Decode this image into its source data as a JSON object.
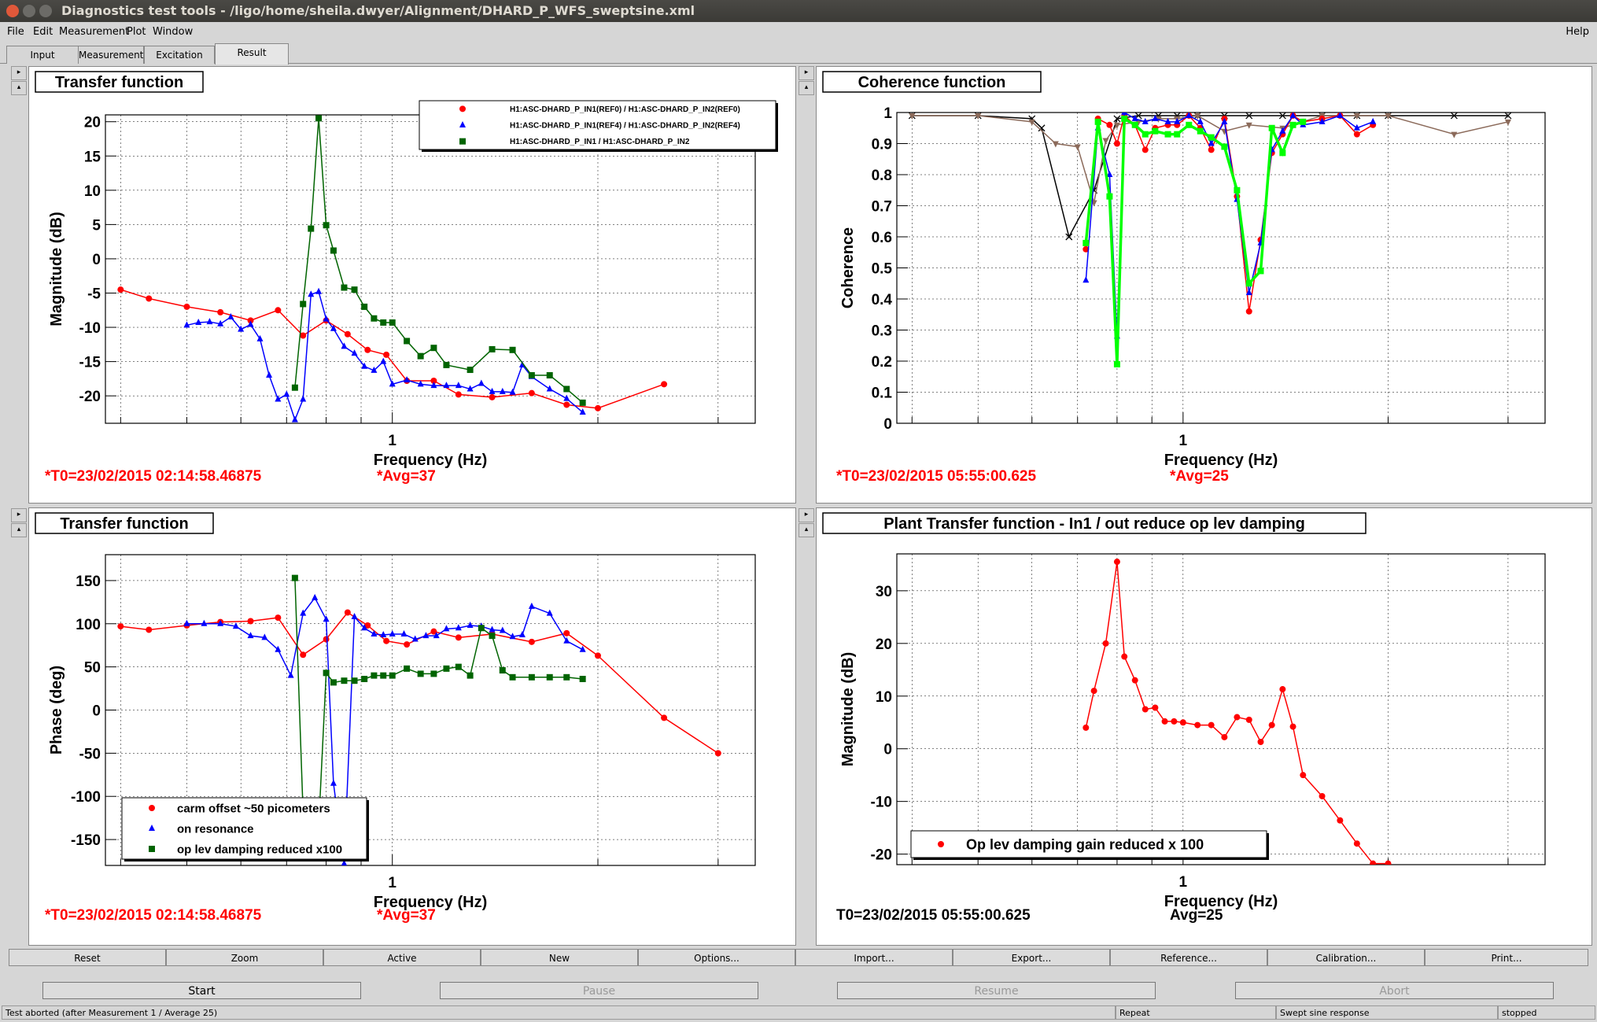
{
  "window": {
    "title": "Diagnostics test tools - /ligo/home/sheila.dwyer/Alignment/DHARD_P_WFS_sweptsine.xml"
  },
  "menu": {
    "items": [
      "File",
      "Edit",
      "Measurement",
      "Plot",
      "Window"
    ],
    "help": "Help"
  },
  "tabs": [
    "Input",
    "Measurement",
    "Excitation",
    "Result"
  ],
  "active_tab": "Result",
  "panels": {
    "tl": {
      "title": "Transfer function",
      "t0": "*T0=23/02/2015 02:14:58.46875",
      "avg": "*Avg=37"
    },
    "tr": {
      "title": "Coherence function",
      "t0": "*T0=23/02/2015 05:55:00.625",
      "avg": "*Avg=25"
    },
    "bl": {
      "title": "Transfer function",
      "t0": "*T0=23/02/2015 02:14:58.46875",
      "avg": "*Avg=37"
    },
    "br": {
      "title": "Plant Transfer function - In1 / out reduce op lev damping",
      "t0": "T0=23/02/2015 05:55:00.625",
      "avg": "Avg=25"
    }
  },
  "colors": {
    "red": "#ff0000",
    "blue": "#0000ff",
    "green": "#006400",
    "lime": "#00ff00",
    "brown": "#8b6a5a",
    "black": "#000000"
  },
  "toolbar": [
    "Reset",
    "Zoom",
    "Active",
    "New",
    "Options...",
    "Import...",
    "Export...",
    "Reference...",
    "Calibration...",
    "Print..."
  ],
  "controls": {
    "start": "Start",
    "pause": "Pause",
    "resume": "Resume",
    "abort": "Abort"
  },
  "status": {
    "message": "Test aborted (after Measurement 1 / Average 25)",
    "mode": "Repeat",
    "type": "Swept sine response",
    "state": "stopped"
  },
  "chart_data": [
    {
      "id": "tl",
      "type": "line",
      "title": "Transfer function",
      "xlabel": "Frequency (Hz)",
      "ylabel": "Magnitude (dB)",
      "xscale": "log",
      "xlim": [
        0.38,
        3.4
      ],
      "ylim": [
        -24,
        21
      ],
      "yticks": [
        20,
        15,
        10,
        5,
        0,
        -5,
        -10,
        -15,
        -20
      ],
      "xtick_labels": [
        {
          "v": 1,
          "t": "1"
        }
      ],
      "legend_placement": "top-right",
      "grid": true,
      "series": [
        {
          "name": "H1:ASC-DHARD_P_IN1(REF0) / H1:ASC-DHARD_P_IN2(REF0)",
          "color": "#ff0000",
          "marker": "circle",
          "x": [
            0.4,
            0.44,
            0.5,
            0.56,
            0.62,
            0.68,
            0.74,
            0.8,
            0.86,
            0.92,
            0.98,
            1.05,
            1.15,
            1.25,
            1.4,
            1.6,
            1.8,
            2.0,
            2.5
          ],
          "y": [
            -4.5,
            -5.8,
            -7,
            -7.8,
            -9,
            -7.5,
            -11.2,
            -9,
            -11,
            -13.3,
            -14,
            -17.8,
            -17.8,
            -19.8,
            -20.2,
            -19.6,
            -21.3,
            -21.8,
            -18.3
          ]
        },
        {
          "name": "H1:ASC-DHARD_P_IN1(REF4) / H1:ASC-DHARD_P_IN2(REF4)",
          "color": "#0000ff",
          "marker": "triangle",
          "x": [
            0.5,
            0.52,
            0.54,
            0.56,
            0.58,
            0.6,
            0.62,
            0.64,
            0.66,
            0.68,
            0.7,
            0.72,
            0.74,
            0.76,
            0.78,
            0.8,
            0.82,
            0.85,
            0.88,
            0.91,
            0.94,
            0.97,
            1.0,
            1.05,
            1.1,
            1.15,
            1.2,
            1.25,
            1.3,
            1.35,
            1.4,
            1.45,
            1.5,
            1.55,
            1.6,
            1.7,
            1.8,
            1.9
          ],
          "y": [
            -9.7,
            -9.3,
            -9.2,
            -9.5,
            -8.5,
            -10.3,
            -9.6,
            -11.7,
            -17,
            -20.5,
            -19.8,
            -23.5,
            -20.5,
            -5.2,
            -4.8,
            -8.8,
            -10.2,
            -12.8,
            -13.8,
            -15.7,
            -16.3,
            -15,
            -18.3,
            -17.7,
            -18.3,
            -18.5,
            -18.5,
            -18.5,
            -19,
            -18.2,
            -19.4,
            -19.4,
            -19.5,
            -15.5,
            -17.2,
            -19,
            -20.4,
            -22.4
          ]
        },
        {
          "name": "H1:ASC-DHARD_P_IN1 / H1:ASC-DHARD_P_IN2",
          "color": "#006400",
          "marker": "square",
          "x": [
            0.72,
            0.74,
            0.76,
            0.78,
            0.8,
            0.82,
            0.85,
            0.88,
            0.91,
            0.94,
            0.97,
            1.0,
            1.05,
            1.1,
            1.15,
            1.2,
            1.3,
            1.4,
            1.5,
            1.6,
            1.7,
            1.8,
            1.9
          ],
          "y": [
            -18.8,
            -6.6,
            4.4,
            20.5,
            4.9,
            1.2,
            -4.2,
            -4.5,
            -7,
            -8.7,
            -9.3,
            -9.3,
            -12,
            -14.2,
            -13,
            -15.5,
            -16.2,
            -13.2,
            -13.3,
            -17,
            -17,
            -19,
            -21
          ]
        }
      ]
    },
    {
      "id": "tr",
      "type": "line",
      "title": "Coherence function",
      "xlabel": "Frequency (Hz)",
      "ylabel": "Coherence",
      "xscale": "log",
      "xlim": [
        0.38,
        3.4
      ],
      "ylim": [
        0,
        1
      ],
      "yticks": [
        1,
        0.9,
        0.8,
        0.7,
        0.6,
        0.5,
        0.4,
        0.3,
        0.2,
        0.1,
        0
      ],
      "xtick_labels": [
        {
          "v": 1,
          "t": "1"
        }
      ],
      "grid": true,
      "series": [
        {
          "color": "#000000",
          "marker": "x",
          "x": [
            0.4,
            0.5,
            0.6,
            0.62,
            0.68,
            0.74,
            0.8,
            0.86,
            0.92,
            0.98,
            1.05,
            1.15,
            1.25,
            1.4,
            1.6,
            1.8,
            2.0,
            2.5,
            3.0
          ],
          "y": [
            0.99,
            0.99,
            0.98,
            0.95,
            0.6,
            0.75,
            0.98,
            0.99,
            0.99,
            0.99,
            0.99,
            0.99,
            0.99,
            0.99,
            0.99,
            0.99,
            0.99,
            0.99,
            0.99
          ]
        },
        {
          "color": "#8b6a5a",
          "marker": "triangle-down",
          "x": [
            0.4,
            0.5,
            0.6,
            0.65,
            0.7,
            0.74,
            0.77,
            0.8,
            0.86,
            0.92,
            0.98,
            1.05,
            1.15,
            1.25,
            1.4,
            1.6,
            1.8,
            2.0,
            2.5,
            3.0
          ],
          "y": [
            0.99,
            0.99,
            0.97,
            0.9,
            0.89,
            0.71,
            0.91,
            0.96,
            0.97,
            0.98,
            0.98,
            0.99,
            0.94,
            0.96,
            0.95,
            0.99,
            0.99,
            0.99,
            0.93,
            0.97
          ]
        },
        {
          "color": "#ff0000",
          "marker": "circle",
          "x": [
            0.72,
            0.75,
            0.78,
            0.8,
            0.82,
            0.85,
            0.88,
            0.91,
            0.95,
            0.98,
            1.02,
            1.06,
            1.1,
            1.15,
            1.2,
            1.25,
            1.3,
            1.35,
            1.4,
            1.45,
            1.5,
            1.6,
            1.7,
            1.8,
            1.9
          ],
          "y": [
            0.56,
            0.98,
            0.96,
            0.9,
            0.99,
            0.96,
            0.88,
            0.95,
            0.96,
            0.96,
            0.99,
            0.95,
            0.88,
            0.98,
            0.73,
            0.36,
            0.59,
            0.87,
            0.93,
            0.99,
            0.97,
            0.98,
            0.99,
            0.93,
            0.96
          ]
        },
        {
          "color": "#0000ff",
          "marker": "triangle",
          "x": [
            0.72,
            0.75,
            0.78,
            0.8,
            0.82,
            0.85,
            0.88,
            0.91,
            0.95,
            0.98,
            1.02,
            1.06,
            1.1,
            1.15,
            1.2,
            1.25,
            1.3,
            1.35,
            1.4,
            1.45,
            1.5,
            1.6,
            1.7,
            1.8,
            1.9
          ],
          "y": [
            0.46,
            0.95,
            0.8,
            0.28,
            1.0,
            0.98,
            0.97,
            0.98,
            0.97,
            0.97,
            0.99,
            0.97,
            0.9,
            0.97,
            0.72,
            0.42,
            0.58,
            0.88,
            0.94,
            0.99,
            0.96,
            0.97,
            0.99,
            0.95,
            0.97
          ]
        },
        {
          "color": "#00ff00",
          "marker": "square",
          "x": [
            0.72,
            0.75,
            0.78,
            0.8,
            0.82,
            0.85,
            0.88,
            0.91,
            0.95,
            0.98,
            1.02,
            1.06,
            1.1,
            1.15,
            1.2,
            1.25,
            1.3,
            1.35,
            1.4,
            1.45,
            1.5
          ],
          "y": [
            0.58,
            0.97,
            0.73,
            0.19,
            0.98,
            0.96,
            0.93,
            0.94,
            0.93,
            0.93,
            0.96,
            0.94,
            0.92,
            0.89,
            0.75,
            0.45,
            0.49,
            0.95,
            0.87,
            0.96,
            0.97
          ]
        }
      ]
    },
    {
      "id": "bl",
      "type": "line",
      "title": "Transfer function",
      "xlabel": "Frequency (Hz)",
      "ylabel": "Phase (deg)",
      "xscale": "log",
      "xlim": [
        0.38,
        3.4
      ],
      "ylim": [
        -180,
        180
      ],
      "yticks": [
        150,
        100,
        50,
        0,
        -50,
        -100,
        -150
      ],
      "xtick_labels": [
        {
          "v": 1,
          "t": "1"
        }
      ],
      "legend_placement": "bottom-left",
      "grid": true,
      "series": [
        {
          "name": "carm offset ~50 picometers",
          "color": "#ff0000",
          "marker": "circle",
          "x": [
            0.4,
            0.44,
            0.5,
            0.56,
            0.62,
            0.68,
            0.74,
            0.8,
            0.86,
            0.92,
            0.98,
            1.05,
            1.15,
            1.25,
            1.4,
            1.6,
            1.8,
            2.0,
            2.5,
            3.0
          ],
          "y": [
            97,
            93,
            98,
            102,
            103,
            107,
            64,
            82,
            113,
            98,
            80,
            76,
            91,
            84,
            88,
            79,
            89,
            63,
            -9,
            -50
          ]
        },
        {
          "name": "on resonance",
          "color": "#0000ff",
          "marker": "triangle",
          "x": [
            0.5,
            0.53,
            0.56,
            0.59,
            0.62,
            0.65,
            0.68,
            0.71,
            0.74,
            0.77,
            0.8,
            0.82,
            0.85,
            0.88,
            0.91,
            0.94,
            0.97,
            1.0,
            1.04,
            1.08,
            1.12,
            1.16,
            1.2,
            1.25,
            1.3,
            1.35,
            1.4,
            1.45,
            1.5,
            1.55,
            1.6,
            1.7,
            1.8,
            1.9
          ],
          "y": [
            100,
            100,
            100,
            97,
            86,
            84,
            70,
            40,
            112,
            130,
            105,
            -85,
            -178,
            108,
            95,
            88,
            87,
            88,
            88,
            82,
            86,
            86,
            94,
            95,
            98,
            97,
            93,
            92,
            85,
            87,
            120,
            112,
            80,
            70
          ]
        },
        {
          "name": "op lev damping reduced x100",
          "color": "#006400",
          "marker": "square",
          "x": [
            0.72,
            0.74,
            0.76,
            0.78,
            0.8,
            0.82,
            0.85,
            0.88,
            0.91,
            0.94,
            0.97,
            1.0,
            1.05,
            1.1,
            1.15,
            1.2,
            1.25,
            1.3,
            1.35,
            1.4,
            1.45,
            1.5,
            1.6,
            1.7,
            1.8,
            1.9
          ],
          "y": [
            153,
            -118,
            -138,
            -135,
            43,
            32,
            34,
            34,
            36,
            40,
            40,
            40,
            48,
            42,
            42,
            48,
            50,
            40,
            95,
            86,
            46,
            38,
            38,
            38,
            38,
            36
          ]
        }
      ]
    },
    {
      "id": "br",
      "type": "line",
      "title": "Plant Transfer function - In1 / out reduce op lev damping",
      "xlabel": "Frequency (Hz)",
      "ylabel": "Magnitude (dB)",
      "xscale": "log",
      "xlim": [
        0.38,
        3.4
      ],
      "ylim": [
        -22,
        37
      ],
      "yticks": [
        30,
        20,
        10,
        0,
        -10,
        -20
      ],
      "xtick_labels": [
        {
          "v": 1,
          "t": "1"
        }
      ],
      "legend_placement": "bottom-left",
      "grid": true,
      "series": [
        {
          "name": "Op lev damping gain reduced x 100",
          "color": "#ff0000",
          "marker": "circle",
          "x": [
            0.72,
            0.74,
            0.77,
            0.8,
            0.82,
            0.85,
            0.88,
            0.91,
            0.94,
            0.97,
            1.0,
            1.05,
            1.1,
            1.15,
            1.2,
            1.25,
            1.3,
            1.35,
            1.4,
            1.45,
            1.5,
            1.6,
            1.7,
            1.8,
            1.9,
            2.0
          ],
          "y": [
            4,
            11,
            20,
            35.5,
            17.5,
            13,
            7.5,
            7.8,
            5.2,
            5.2,
            5,
            4.5,
            4.5,
            2.2,
            6,
            5.5,
            1.3,
            4.5,
            11.3,
            4.2,
            -5,
            -9,
            -13.6,
            -18,
            -21.8,
            -21.8
          ]
        }
      ]
    }
  ]
}
